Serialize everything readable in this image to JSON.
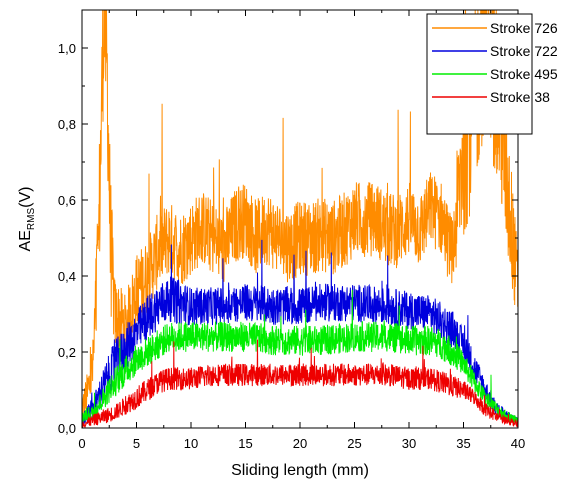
{
  "chart_data": {
    "type": "line",
    "title": "",
    "xlabel": "Sliding length (mm)",
    "ylabel_main": "AE",
    "ylabel_sub": "RMS",
    "ylabel_unit": "(V)",
    "xlim": [
      0,
      40
    ],
    "ylim": [
      0,
      1.1
    ],
    "x_ticks": [
      0,
      5,
      10,
      15,
      20,
      25,
      30,
      35,
      40
    ],
    "y_ticks": [
      0.0,
      0.2,
      0.4,
      0.6,
      0.8,
      1.0
    ],
    "y_tick_labels": [
      "0,0",
      "0,2",
      "0,4",
      "0,6",
      "0,8",
      "1,0"
    ],
    "x_tick_labels": [
      "0",
      "5",
      "10",
      "15",
      "20",
      "25",
      "30",
      "35",
      "40"
    ],
    "grid": false,
    "legend_position": "top-right",
    "series": [
      {
        "name": "Stroke 726",
        "color": "#ff8c00",
        "x": [
          0,
          0.5,
          1,
          1.5,
          2,
          2.3,
          2.6,
          3,
          4,
          5,
          6,
          7,
          8,
          9,
          10,
          11,
          12,
          13,
          14,
          15,
          16,
          17,
          18,
          19,
          20,
          21,
          22,
          23,
          24,
          25,
          26,
          27,
          28,
          29,
          30,
          31,
          32,
          33,
          34,
          35,
          36,
          36.5,
          37,
          37.5,
          38,
          38.5,
          39,
          39.5,
          40
        ],
        "values": [
          0.05,
          0.09,
          0.16,
          0.45,
          1.1,
          0.95,
          0.5,
          0.3,
          0.27,
          0.36,
          0.4,
          0.47,
          0.5,
          0.47,
          0.5,
          0.53,
          0.5,
          0.47,
          0.53,
          0.55,
          0.5,
          0.53,
          0.5,
          0.48,
          0.5,
          0.5,
          0.51,
          0.5,
          0.52,
          0.55,
          0.55,
          0.55,
          0.52,
          0.52,
          0.55,
          0.52,
          0.58,
          0.55,
          0.45,
          0.75,
          0.85,
          0.95,
          1.05,
          0.95,
          0.9,
          0.8,
          0.65,
          0.5,
          0.36
        ],
        "amp": [
          0.04,
          0.06,
          0.08,
          0.2,
          0.2,
          0.2,
          0.2,
          0.1,
          0.08,
          0.1,
          0.1,
          0.1,
          0.1,
          0.1,
          0.1,
          0.1,
          0.1,
          0.1,
          0.1,
          0.1,
          0.1,
          0.1,
          0.1,
          0.1,
          0.1,
          0.1,
          0.1,
          0.1,
          0.1,
          0.1,
          0.1,
          0.1,
          0.1,
          0.1,
          0.1,
          0.1,
          0.1,
          0.1,
          0.1,
          0.25,
          0.25,
          0.25,
          0.25,
          0.25,
          0.25,
          0.25,
          0.2,
          0.15,
          0.1
        ]
      },
      {
        "name": "Stroke 722",
        "color": "#0000dd",
        "x": [
          0,
          1,
          2,
          3,
          4,
          5,
          6,
          7,
          8,
          9,
          10,
          12,
          15,
          18,
          20,
          22,
          25,
          28,
          30,
          32,
          33,
          34,
          35,
          36,
          37,
          38,
          39,
          40
        ],
        "values": [
          0.02,
          0.05,
          0.11,
          0.17,
          0.21,
          0.25,
          0.29,
          0.32,
          0.34,
          0.33,
          0.32,
          0.32,
          0.33,
          0.32,
          0.32,
          0.33,
          0.33,
          0.32,
          0.31,
          0.3,
          0.28,
          0.26,
          0.22,
          0.16,
          0.1,
          0.05,
          0.03,
          0.02
        ],
        "amp": [
          0.02,
          0.03,
          0.05,
          0.06,
          0.06,
          0.06,
          0.06,
          0.06,
          0.06,
          0.06,
          0.05,
          0.05,
          0.05,
          0.05,
          0.05,
          0.05,
          0.05,
          0.05,
          0.05,
          0.05,
          0.05,
          0.05,
          0.04,
          0.04,
          0.03,
          0.02,
          0.015,
          0.01
        ]
      },
      {
        "name": "Stroke 495",
        "color": "#00ee00",
        "x": [
          0,
          1,
          2,
          3,
          4,
          5,
          6,
          7,
          8,
          9,
          10,
          12,
          15,
          18,
          20,
          22,
          25,
          28,
          30,
          32,
          33,
          34,
          35,
          36,
          37,
          38,
          39,
          40
        ],
        "values": [
          0.03,
          0.04,
          0.08,
          0.12,
          0.15,
          0.18,
          0.2,
          0.22,
          0.24,
          0.24,
          0.24,
          0.24,
          0.24,
          0.23,
          0.23,
          0.23,
          0.24,
          0.24,
          0.23,
          0.23,
          0.22,
          0.2,
          0.17,
          0.12,
          0.08,
          0.05,
          0.03,
          0.02
        ],
        "amp": [
          0.02,
          0.02,
          0.03,
          0.04,
          0.04,
          0.04,
          0.04,
          0.04,
          0.04,
          0.04,
          0.04,
          0.04,
          0.04,
          0.04,
          0.04,
          0.04,
          0.04,
          0.04,
          0.04,
          0.04,
          0.04,
          0.04,
          0.03,
          0.03,
          0.02,
          0.02,
          0.015,
          0.01
        ]
      },
      {
        "name": "Stroke 38",
        "color": "#ee0000",
        "x": [
          0,
          1,
          2,
          3,
          4,
          5,
          6,
          7,
          8,
          9,
          10,
          12,
          15,
          18,
          20,
          22,
          25,
          28,
          30,
          32,
          33,
          34,
          35,
          36,
          37,
          38,
          39,
          40
        ],
        "values": [
          0.01,
          0.02,
          0.03,
          0.04,
          0.06,
          0.08,
          0.1,
          0.12,
          0.13,
          0.13,
          0.13,
          0.14,
          0.14,
          0.14,
          0.14,
          0.14,
          0.14,
          0.14,
          0.13,
          0.13,
          0.12,
          0.11,
          0.1,
          0.08,
          0.05,
          0.03,
          0.02,
          0.01
        ],
        "amp": [
          0.01,
          0.015,
          0.02,
          0.02,
          0.025,
          0.03,
          0.03,
          0.03,
          0.03,
          0.03,
          0.03,
          0.03,
          0.03,
          0.03,
          0.03,
          0.03,
          0.03,
          0.03,
          0.03,
          0.03,
          0.03,
          0.03,
          0.025,
          0.02,
          0.02,
          0.015,
          0.01,
          0.01
        ]
      }
    ]
  }
}
